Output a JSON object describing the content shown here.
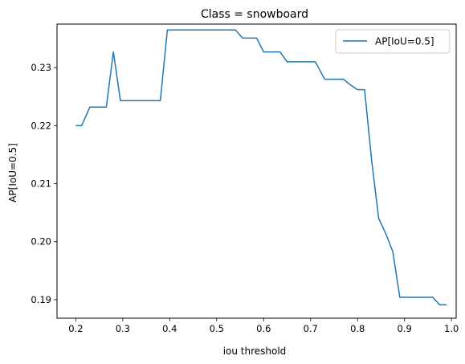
{
  "colors": {
    "line": "#1f77b4",
    "axis": "#000000",
    "legend_border": "#cccccc"
  },
  "chart_data": {
    "type": "line",
    "title": "Class = snowboard",
    "xlabel": "iou threshold",
    "ylabel": "AP[IoU=0.5]",
    "xlim": [
      0.16,
      1.01
    ],
    "ylim": [
      0.1868,
      0.2375
    ],
    "xticks": [
      0.2,
      0.3,
      0.4,
      0.5,
      0.6,
      0.7,
      0.8,
      0.9,
      1.0
    ],
    "xtick_labels": [
      "0.2",
      "0.3",
      "0.4",
      "0.5",
      "0.6",
      "0.7",
      "0.8",
      "0.9",
      "1.0"
    ],
    "yticks": [
      0.19,
      0.2,
      0.21,
      0.22,
      0.23
    ],
    "ytick_labels": [
      "0.19",
      "0.20",
      "0.21",
      "0.22",
      "0.23"
    ],
    "legend_position": "top-right",
    "series": [
      {
        "name": "AP[IoU=0.5]",
        "x": [
          0.2,
          0.2125,
          0.23,
          0.245,
          0.265,
          0.28,
          0.295,
          0.31,
          0.33,
          0.36,
          0.38,
          0.395,
          0.41,
          0.44,
          0.47,
          0.5,
          0.52,
          0.54,
          0.555,
          0.57,
          0.585,
          0.6,
          0.615,
          0.635,
          0.65,
          0.67,
          0.69,
          0.71,
          0.73,
          0.755,
          0.77,
          0.785,
          0.8,
          0.815,
          0.83,
          0.845,
          0.86,
          0.875,
          0.89,
          0.905,
          0.92,
          0.94,
          0.96,
          0.975,
          0.99
        ],
        "values": [
          0.22,
          0.22,
          0.2232,
          0.2232,
          0.2232,
          0.2327,
          0.2243,
          0.2243,
          0.2243,
          0.2243,
          0.2243,
          0.2365,
          0.2365,
          0.2365,
          0.2365,
          0.2365,
          0.2365,
          0.2365,
          0.2351,
          0.2351,
          0.2351,
          0.2327,
          0.2327,
          0.2327,
          0.231,
          0.231,
          0.231,
          0.231,
          0.228,
          0.228,
          0.228,
          0.227,
          0.2262,
          0.2262,
          0.214,
          0.204,
          0.2014,
          0.1983,
          0.1904,
          0.1904,
          0.1904,
          0.1904,
          0.1904,
          0.1891,
          0.1891
        ]
      }
    ]
  }
}
